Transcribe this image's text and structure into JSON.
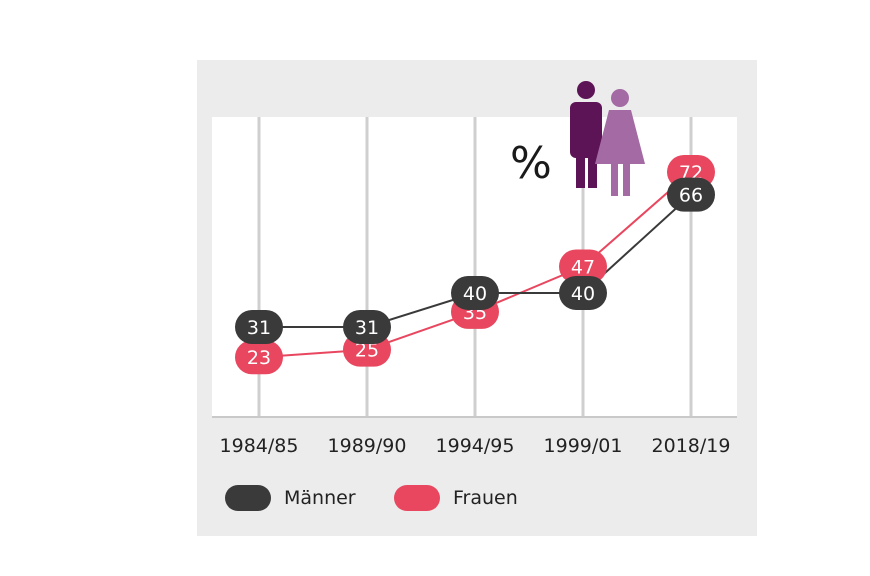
{
  "chart_data": {
    "type": "line",
    "categories": [
      "1984/85",
      "1989/90",
      "1994/95",
      "1999/01",
      "2018/19"
    ],
    "series": [
      {
        "name": "Männer",
        "values": [
          31,
          31,
          40,
          40,
          66
        ],
        "color": "#3a3a3a"
      },
      {
        "name": "Frauen",
        "values": [
          23,
          25,
          35,
          47,
          72
        ],
        "color": "#e8475f"
      }
    ],
    "unit_label": "%",
    "icons": [
      "man-icon",
      "woman-icon"
    ],
    "icon_colors": {
      "man": "#5c1456",
      "woman": "#a36aa3"
    },
    "legend_placement": "bottom-left",
    "grid": "vertical"
  }
}
